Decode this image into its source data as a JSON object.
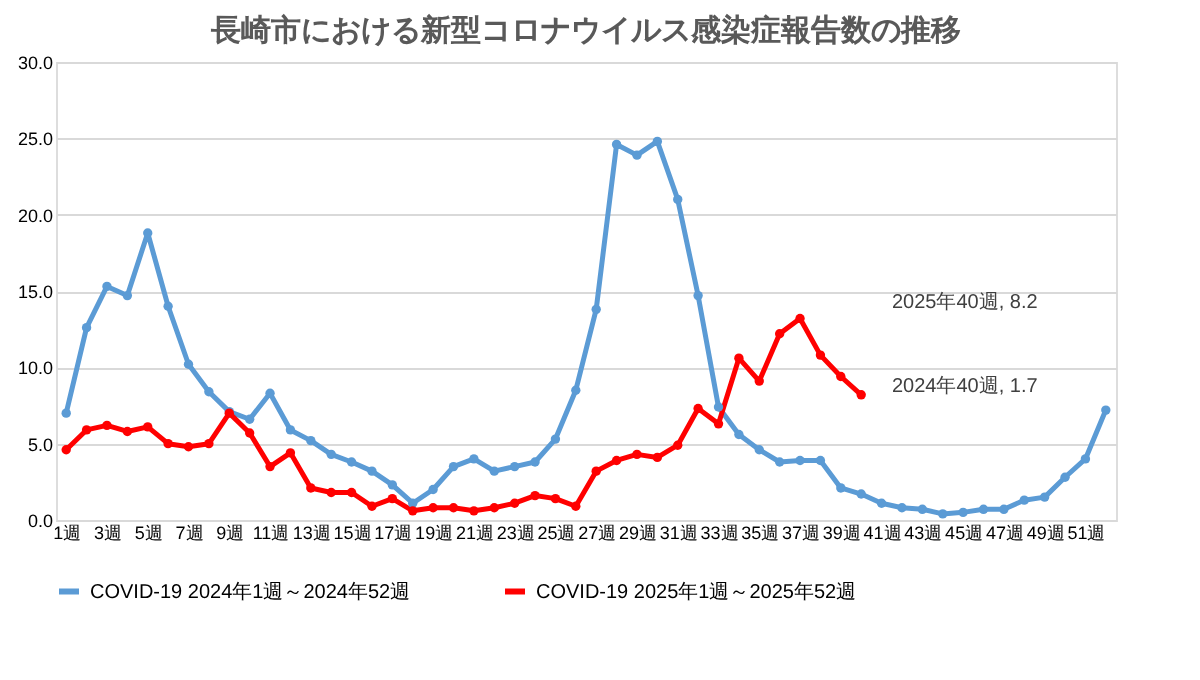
{
  "chart_data": {
    "type": "line",
    "title": "長崎市における新型コロナウイルス感染症報告数の推移",
    "categories": [
      "1週",
      null,
      "3週",
      null,
      "5週",
      null,
      "7週",
      null,
      "9週",
      null,
      "11週",
      null,
      "13週",
      null,
      "15週",
      null,
      "17週",
      null,
      "19週",
      null,
      "21週",
      null,
      "23週",
      null,
      "25週",
      null,
      "27週",
      null,
      "29週",
      null,
      "31週",
      null,
      "33週",
      null,
      "35週",
      null,
      "37週",
      null,
      "39週",
      null,
      "41週",
      null,
      "43週",
      null,
      "45週",
      null,
      "47週",
      null,
      "49週",
      null,
      "51週",
      null
    ],
    "series": [
      {
        "name": "COVID-19 2024年1週～2024年52週",
        "color": "#5b9bd5",
        "values": [
          7.0,
          12.6,
          15.3,
          14.7,
          18.8,
          14.0,
          10.2,
          8.4,
          7.1,
          6.6,
          8.3,
          5.9,
          5.2,
          4.3,
          3.8,
          3.2,
          2.3,
          1.1,
          2.0,
          3.5,
          4.0,
          3.2,
          3.5,
          3.8,
          5.3,
          8.5,
          13.8,
          24.6,
          23.9,
          24.8,
          21.0,
          14.7,
          7.4,
          5.6,
          4.6,
          3.8,
          3.9,
          3.9,
          2.1,
          1.7,
          1.1,
          0.8,
          0.7,
          0.4,
          0.5,
          0.7,
          0.7,
          1.3,
          1.5,
          2.8,
          4.0,
          7.2
        ]
      },
      {
        "name": "COVID-19 2025年1週～2025年52週",
        "color": "#ff0000",
        "values": [
          4.6,
          5.9,
          6.2,
          5.8,
          6.1,
          5.0,
          4.8,
          5.0,
          7.0,
          5.7,
          3.5,
          4.4,
          2.1,
          1.8,
          1.8,
          0.9,
          1.4,
          0.6,
          0.8,
          0.8,
          0.6,
          0.8,
          1.1,
          1.6,
          1.4,
          0.9,
          3.2,
          3.9,
          4.3,
          4.1,
          4.9,
          7.3,
          6.3,
          10.6,
          9.1,
          12.2,
          13.2,
          10.8,
          9.4,
          8.2,
          null,
          null,
          null,
          null,
          null,
          null,
          null,
          null,
          null,
          null,
          null,
          null
        ]
      }
    ],
    "annotations": [
      "2025年40週, 8.2",
      "2024年40週, 1.7"
    ],
    "ylim": [
      0,
      30
    ],
    "yticks": [
      {
        "value": 0,
        "label": "0.0"
      },
      {
        "value": 5,
        "label": "5.0"
      },
      {
        "value": 10,
        "label": "10.0"
      },
      {
        "value": 15,
        "label": "15.0"
      },
      {
        "value": 20,
        "label": "20.0"
      },
      {
        "value": 25,
        "label": "25.0"
      },
      {
        "value": 30,
        "label": "30.0"
      }
    ],
    "grid": "y",
    "legend": "bottom",
    "marker": "circle",
    "line_style": "solid"
  }
}
